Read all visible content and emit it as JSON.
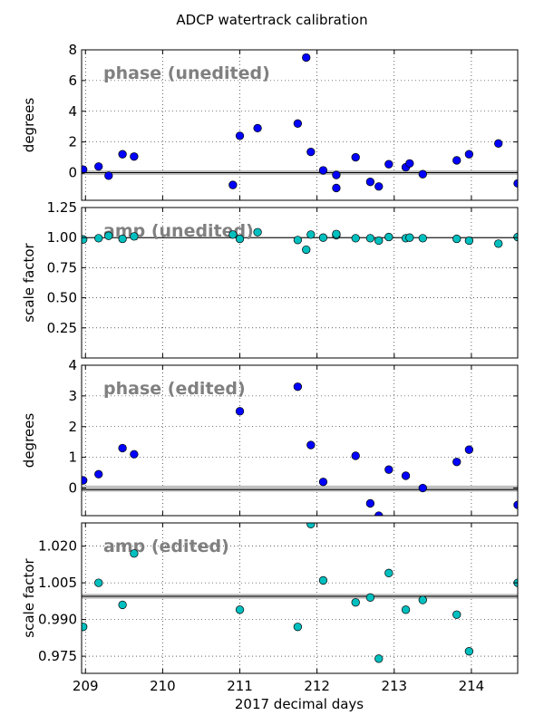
{
  "chart_data": {
    "type": "scatter",
    "title": "ADCP watertrack calibration",
    "xlabel": "2017 decimal days",
    "xlim": [
      208.95,
      214.6
    ],
    "x_ticks": [
      "209",
      "210",
      "211",
      "212",
      "213",
      "214"
    ],
    "grid": true,
    "panels": [
      {
        "annotation": "phase (unedited)",
        "ylabel": "degrees",
        "ylim": [
          -1.8,
          8
        ],
        "y_ticks": [
          "0",
          "2",
          "4",
          "6",
          "8"
        ],
        "reference_line": 0,
        "band": [
          -0.15,
          0.15
        ],
        "marker_color": "#0000ff",
        "points": [
          [
            208.97,
            0.2
          ],
          [
            209.17,
            0.4
          ],
          [
            209.3,
            -0.2
          ],
          [
            209.48,
            1.2
          ],
          [
            209.63,
            1.05
          ],
          [
            210.91,
            -0.8
          ],
          [
            211.0,
            2.4
          ],
          [
            211.23,
            2.9
          ],
          [
            211.75,
            3.2
          ],
          [
            211.86,
            7.5
          ],
          [
            211.92,
            1.35
          ],
          [
            212.08,
            0.15
          ],
          [
            212.25,
            -0.15
          ],
          [
            212.25,
            -1.0
          ],
          [
            212.5,
            1.0
          ],
          [
            212.69,
            -0.6
          ],
          [
            212.8,
            -0.9
          ],
          [
            212.93,
            0.55
          ],
          [
            213.15,
            0.35
          ],
          [
            213.2,
            0.6
          ],
          [
            213.37,
            -0.1
          ],
          [
            213.81,
            0.8
          ],
          [
            213.97,
            1.2
          ],
          [
            214.35,
            1.9
          ],
          [
            214.6,
            -0.7
          ]
        ]
      },
      {
        "annotation": "amp (unedited)",
        "ylabel": "scale factor",
        "ylim": [
          0,
          1.25
        ],
        "y_ticks": [
          "0.25",
          "0.50",
          "0.75",
          "1.00",
          "1.25"
        ],
        "reference_line": 1.0,
        "band": [
          0.995,
          1.005
        ],
        "marker_color": "#00bfbf",
        "points": [
          [
            208.97,
            0.985
          ],
          [
            209.17,
            0.995
          ],
          [
            209.3,
            1.015
          ],
          [
            209.48,
            0.99
          ],
          [
            209.63,
            1.01
          ],
          [
            210.91,
            1.025
          ],
          [
            211.0,
            0.99
          ],
          [
            211.23,
            1.045
          ],
          [
            211.75,
            0.98
          ],
          [
            211.86,
            0.9
          ],
          [
            211.92,
            1.025
          ],
          [
            212.08,
            1.0
          ],
          [
            212.25,
            1.02
          ],
          [
            212.25,
            1.03
          ],
          [
            212.5,
            0.995
          ],
          [
            212.69,
            0.995
          ],
          [
            212.8,
            0.975
          ],
          [
            212.93,
            1.005
          ],
          [
            213.15,
            0.995
          ],
          [
            213.2,
            1.0
          ],
          [
            213.37,
            0.995
          ],
          [
            213.81,
            0.99
          ],
          [
            213.97,
            0.975
          ],
          [
            214.35,
            0.95
          ],
          [
            214.6,
            1.005
          ]
        ]
      },
      {
        "annotation": "phase (edited)",
        "ylabel": "degrees",
        "ylim": [
          -0.9,
          4
        ],
        "y_ticks": [
          "0",
          "1",
          "2",
          "3",
          "4"
        ],
        "reference_line": -0.05,
        "band": [
          -0.12,
          0.08
        ],
        "marker_color": "#0000ff",
        "points": [
          [
            208.97,
            0.25
          ],
          [
            209.17,
            0.45
          ],
          [
            209.48,
            1.3
          ],
          [
            209.63,
            1.1
          ],
          [
            211.0,
            2.5
          ],
          [
            211.75,
            3.3
          ],
          [
            211.92,
            1.4
          ],
          [
            212.08,
            0.2
          ],
          [
            212.5,
            1.05
          ],
          [
            212.69,
            -0.5
          ],
          [
            212.8,
            -0.9
          ],
          [
            212.93,
            0.6
          ],
          [
            213.15,
            0.4
          ],
          [
            213.37,
            0.0
          ],
          [
            213.81,
            0.85
          ],
          [
            213.97,
            1.25
          ],
          [
            214.6,
            -0.55
          ]
        ]
      },
      {
        "annotation": "amp (edited)",
        "ylabel": "scale factor",
        "ylim": [
          0.968,
          1.0295
        ],
        "y_ticks": [
          "0.975",
          "0.990",
          "1.005",
          "1.020"
        ],
        "reference_line": 0.9995,
        "band": [
          0.9985,
          1.0005
        ],
        "marker_color": "#00bfbf",
        "points": [
          [
            208.97,
            0.987
          ],
          [
            209.17,
            1.005
          ],
          [
            209.48,
            0.996
          ],
          [
            209.63,
            1.017
          ],
          [
            211.0,
            0.994
          ],
          [
            211.75,
            0.987
          ],
          [
            211.92,
            1.029
          ],
          [
            212.08,
            1.006
          ],
          [
            212.5,
            0.997
          ],
          [
            212.69,
            0.999
          ],
          [
            212.8,
            0.974
          ],
          [
            212.93,
            1.009
          ],
          [
            213.15,
            0.994
          ],
          [
            213.37,
            0.998
          ],
          [
            213.81,
            0.992
          ],
          [
            213.97,
            0.977
          ],
          [
            214.6,
            1.005
          ]
        ]
      }
    ]
  }
}
